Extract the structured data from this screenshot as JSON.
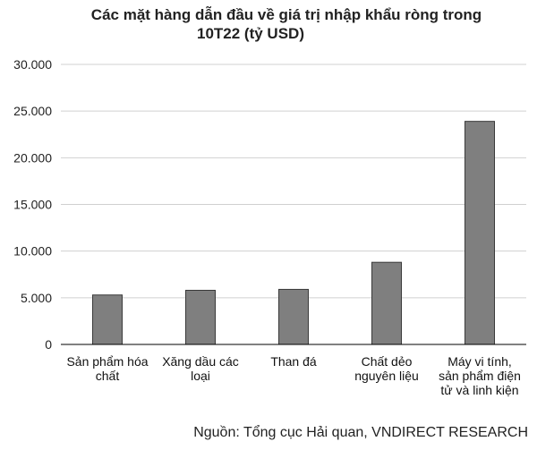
{
  "title_line1": "Các mặt hàng dẫn đầu về giá trị nhập khẩu ròng trong",
  "title_line2": "10T22 (tỷ USD)",
  "source": "Nguồn: Tổng cục Hải quan, VNDIRECT RESEARCH",
  "colors": {
    "bar": "#7f7f7f",
    "bar_stroke": "#3a3a3a",
    "grid": "#d0d0d0",
    "axis": "#000000"
  },
  "chart_data": {
    "type": "bar",
    "title": "Các mặt hàng dẫn đầu về giá trị nhập khẩu ròng trong 10T22 (tỷ USD)",
    "categories": [
      [
        "Sản phẩm hóa",
        "chất"
      ],
      [
        "Xăng dầu các",
        "loại"
      ],
      [
        "Than đá"
      ],
      [
        "Chất dẻo",
        "nguyên liệu"
      ],
      [
        "Máy vi tính,",
        "sản phẩm điện",
        "tử và linh kiện"
      ]
    ],
    "values": [
      5300,
      5800,
      5900,
      8800,
      23900
    ],
    "ylim": [
      0,
      30000
    ],
    "yticks": [
      {
        "v": 0,
        "label": "0"
      },
      {
        "v": 5000,
        "label": "5.000"
      },
      {
        "v": 10000,
        "label": "10.000"
      },
      {
        "v": 15000,
        "label": "15.000"
      },
      {
        "v": 20000,
        "label": "20.000"
      },
      {
        "v": 25000,
        "label": "25.000"
      },
      {
        "v": 30000,
        "label": "30.000"
      }
    ],
    "grid": true,
    "legend": "none"
  }
}
